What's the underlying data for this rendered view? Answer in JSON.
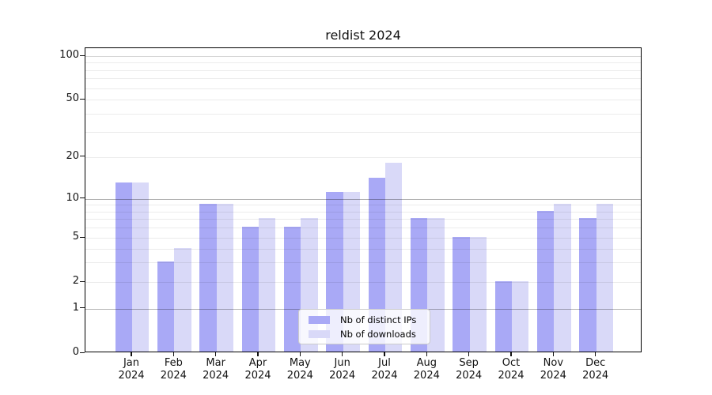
{
  "title": "reldist 2024",
  "chart_data": {
    "type": "bar",
    "categories": [
      {
        "month": "Jan",
        "year": "2024"
      },
      {
        "month": "Feb",
        "year": "2024"
      },
      {
        "month": "Mar",
        "year": "2024"
      },
      {
        "month": "Apr",
        "year": "2024"
      },
      {
        "month": "May",
        "year": "2024"
      },
      {
        "month": "Jun",
        "year": "2024"
      },
      {
        "month": "Jul",
        "year": "2024"
      },
      {
        "month": "Aug",
        "year": "2024"
      },
      {
        "month": "Sep",
        "year": "2024"
      },
      {
        "month": "Oct",
        "year": "2024"
      },
      {
        "month": "Nov",
        "year": "2024"
      },
      {
        "month": "Dec",
        "year": "2024"
      }
    ],
    "series": [
      {
        "name": "Nb of distinct IPs",
        "color": "#a9a9f6",
        "values": [
          13,
          3,
          9,
          6,
          6,
          11,
          14,
          7,
          5,
          2,
          8,
          7
        ]
      },
      {
        "name": "Nb of downloads",
        "color": "#d9d9f8",
        "values": [
          13,
          4,
          9,
          7,
          7,
          11,
          18,
          7,
          5,
          2,
          9,
          9
        ]
      }
    ],
    "yticks": [
      0,
      1,
      2,
      5,
      10,
      20,
      50,
      100
    ],
    "ylim": [
      0,
      117
    ],
    "yscale": "log-like with 0 baseline",
    "grid": "horizontal major and minor, no vertical",
    "minor_grid_values": [
      3,
      4,
      6,
      7,
      8,
      9,
      30,
      40,
      60,
      70,
      80,
      90
    ],
    "legend_position": "lower center inside plot",
    "xlabel": "",
    "ylabel": ""
  },
  "legend": {
    "entries": [
      {
        "label": "Nb of distinct IPs",
        "color": "#a9a9f6"
      },
      {
        "label": "Nb of downloads",
        "color": "#d9d9f8"
      }
    ]
  },
  "colors": {
    "series_ips": "#a9a9f6",
    "series_downloads": "#d9d9f8",
    "grid_major": "#b0b0b0",
    "grid_minor": "#ebebeb",
    "spine": "#000000",
    "background": "#ffffff"
  }
}
